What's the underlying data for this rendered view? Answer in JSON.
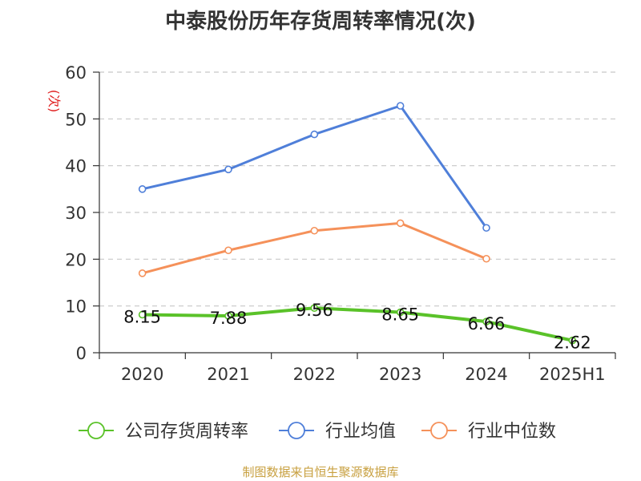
{
  "chart_data": {
    "type": "line",
    "title": "中泰股份历年存货周转率情况(次)",
    "ylabel": "(次)",
    "categories": [
      "2020",
      "2021",
      "2022",
      "2023",
      "2024",
      "2025H1"
    ],
    "ylim": [
      0,
      60
    ],
    "yticks": [
      0,
      10,
      20,
      30,
      40,
      50,
      60
    ],
    "grid": true,
    "legend_position": "bottom",
    "series": [
      {
        "name": "公司存货周转率",
        "color": "#5ac229",
        "values": [
          8.15,
          7.88,
          9.56,
          8.65,
          6.66,
          2.62
        ],
        "labels": [
          "8.15",
          "7.88",
          "9.56",
          "8.65",
          "6.66",
          "2.62"
        ]
      },
      {
        "name": "行业均值",
        "color": "#4f7fd9",
        "values": [
          35.0,
          39.2,
          46.7,
          52.8,
          26.7,
          null
        ]
      },
      {
        "name": "行业中位数",
        "color": "#f5915a",
        "values": [
          17.0,
          21.9,
          26.1,
          27.7,
          20.1,
          null
        ]
      }
    ]
  },
  "source": "制图数据来自恒生聚源数据库"
}
